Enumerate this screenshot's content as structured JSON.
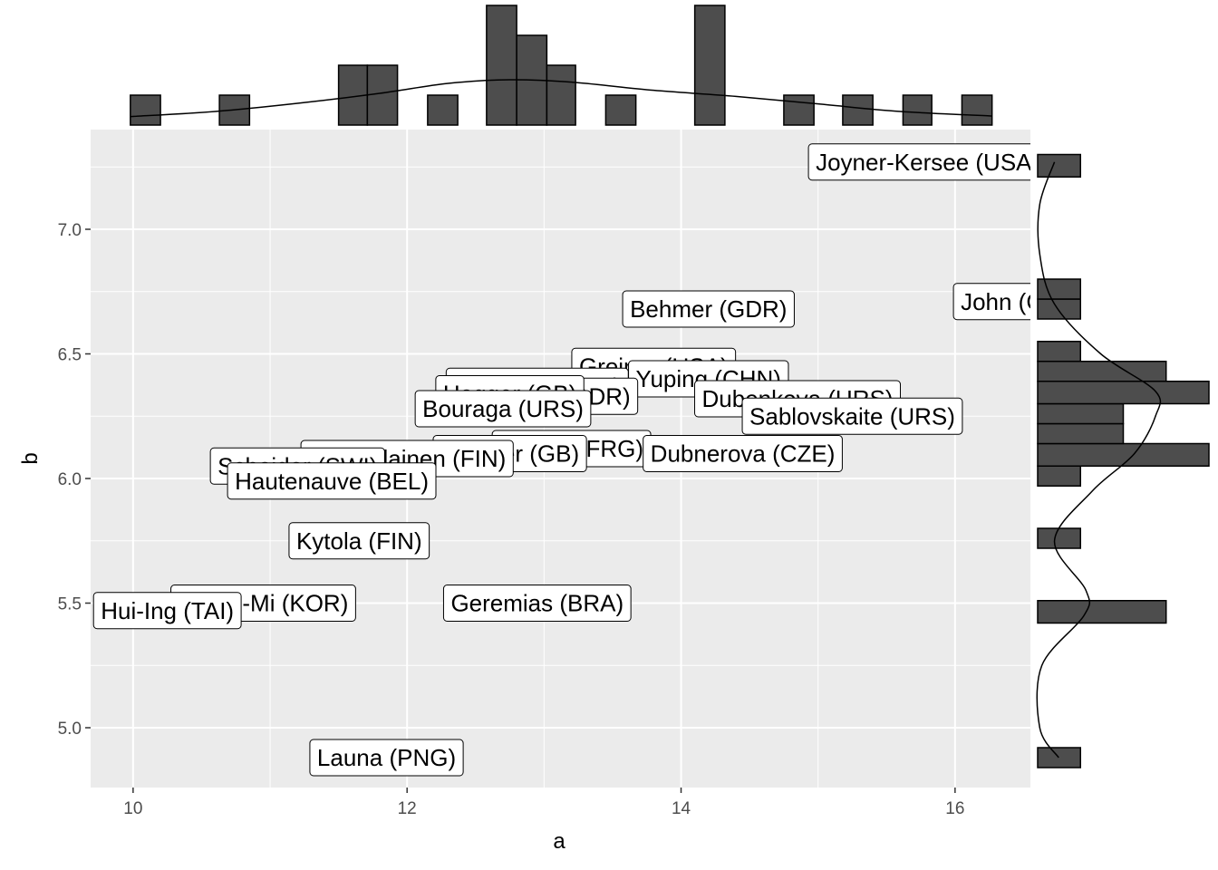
{
  "chart_data": {
    "type": "scatter",
    "title": "",
    "xlabel": "a",
    "ylabel": "b",
    "xlim": [
      9.69,
      16.55
    ],
    "ylim": [
      4.76,
      7.4
    ],
    "x_ticks": [
      10,
      12,
      14,
      16
    ],
    "x_tick_labels": [
      "10",
      "12",
      "14",
      "16"
    ],
    "y_ticks": [
      5.0,
      5.5,
      6.0,
      6.5,
      7.0
    ],
    "y_tick_labels": [
      "5.0",
      "5.5",
      "6.0",
      "6.5",
      "7.0"
    ],
    "grid": true,
    "panel_background": "#ebebeb",
    "bar_color": "#4d4d4d",
    "points": [
      {
        "label": "Joyner-Kersee (USA)",
        "x": 15.8,
        "y": 7.27
      },
      {
        "label": "John (GDR)",
        "x": 16.5,
        "y": 6.71
      },
      {
        "label": "Behmer (GDR)",
        "x": 14.2,
        "y": 6.68
      },
      {
        "label": "Greiner (USA)",
        "x": 13.8,
        "y": 6.45
      },
      {
        "label": "Yuping (CHN)",
        "x": 14.2,
        "y": 6.4
      },
      {
        "label": "Dimitrova (BUL)",
        "x": 12.95,
        "y": 6.37
      },
      {
        "label": "Schulz (GDR)",
        "x": 13.1,
        "y": 6.33
      },
      {
        "label": "Hagger (GB)",
        "x": 12.75,
        "y": 6.34
      },
      {
        "label": "Bouraga (URS)",
        "x": 12.7,
        "y": 6.28
      },
      {
        "label": "Dubenkova (URS)",
        "x": 14.85,
        "y": 6.32
      },
      {
        "label": "Sablovskaite (URS)",
        "x": 15.25,
        "y": 6.25
      },
      {
        "label": "Kunzel (FRG)",
        "x": 13.2,
        "y": 6.12
      },
      {
        "label": "Dubnerova (CZE)",
        "x": 14.45,
        "y": 6.1
      },
      {
        "label": "Mulliner (GB)",
        "x": 12.75,
        "y": 6.1
      },
      {
        "label": "Ruotsalainen (FIN)",
        "x": 12.0,
        "y": 6.08
      },
      {
        "label": "Scheider (SWI)",
        "x": 11.2,
        "y": 6.05
      },
      {
        "label": "Hautenauve (BEL)",
        "x": 11.45,
        "y": 5.99
      },
      {
        "label": "Kytola (FIN)",
        "x": 11.65,
        "y": 5.75
      },
      {
        "label": "Jeong-Mi (KOR)",
        "x": 10.95,
        "y": 5.5
      },
      {
        "label": "Geremias (BRA)",
        "x": 12.95,
        "y": 5.5
      },
      {
        "label": "Hui-Ing (TAI)",
        "x": 10.25,
        "y": 5.47
      },
      {
        "label": "Launa (PNG)",
        "x": 11.85,
        "y": 4.88
      }
    ],
    "x_histogram": {
      "bins": [
        {
          "from": 9.98,
          "to": 10.2,
          "count": 1
        },
        {
          "from": 10.63,
          "to": 10.85,
          "count": 1
        },
        {
          "from": 11.5,
          "to": 11.71,
          "count": 2
        },
        {
          "from": 11.71,
          "to": 11.93,
          "count": 2
        },
        {
          "from": 12.15,
          "to": 12.37,
          "count": 1
        },
        {
          "from": 12.58,
          "to": 12.8,
          "count": 4
        },
        {
          "from": 12.8,
          "to": 13.02,
          "count": 3
        },
        {
          "from": 13.02,
          "to": 13.23,
          "count": 2
        },
        {
          "from": 13.45,
          "to": 13.67,
          "count": 1
        },
        {
          "from": 14.1,
          "to": 14.32,
          "count": 4
        },
        {
          "from": 14.75,
          "to": 14.97,
          "count": 1
        },
        {
          "from": 15.18,
          "to": 15.4,
          "count": 1
        },
        {
          "from": 15.62,
          "to": 15.83,
          "count": 1
        },
        {
          "from": 16.05,
          "to": 16.27,
          "count": 1
        }
      ]
    },
    "y_histogram": {
      "bins": [
        {
          "from": 4.84,
          "to": 4.92,
          "count": 1
        },
        {
          "from": 5.42,
          "to": 5.51,
          "count": 3
        },
        {
          "from": 5.72,
          "to": 5.8,
          "count": 1
        },
        {
          "from": 5.97,
          "to": 6.05,
          "count": 1
        },
        {
          "from": 6.05,
          "to": 6.14,
          "count": 4
        },
        {
          "from": 6.14,
          "to": 6.22,
          "count": 2
        },
        {
          "from": 6.22,
          "to": 6.3,
          "count": 2
        },
        {
          "from": 6.3,
          "to": 6.39,
          "count": 4
        },
        {
          "from": 6.39,
          "to": 6.47,
          "count": 3
        },
        {
          "from": 6.47,
          "to": 6.55,
          "count": 1
        },
        {
          "from": 6.64,
          "to": 6.72,
          "count": 1
        },
        {
          "from": 6.72,
          "to": 6.8,
          "count": 1
        },
        {
          "from": 7.21,
          "to": 7.3,
          "count": 1
        }
      ]
    },
    "x_density": [
      [
        9.98,
        0.28
      ],
      [
        10.6,
        0.45
      ],
      [
        11.2,
        0.72
      ],
      [
        11.8,
        1.05
      ],
      [
        12.3,
        1.38
      ],
      [
        12.75,
        1.5
      ],
      [
        13.2,
        1.42
      ],
      [
        13.8,
        1.15
      ],
      [
        14.4,
        0.95
      ],
      [
        15.0,
        0.7
      ],
      [
        15.6,
        0.45
      ],
      [
        16.27,
        0.3
      ]
    ],
    "y_density": [
      [
        4.88,
        0.5
      ],
      [
        5.0,
        0.05
      ],
      [
        5.25,
        0.1
      ],
      [
        5.45,
        1.1
      ],
      [
        5.55,
        1.15
      ],
      [
        5.75,
        0.4
      ],
      [
        5.95,
        1.3
      ],
      [
        6.1,
        2.3
      ],
      [
        6.25,
        2.8
      ],
      [
        6.35,
        2.8
      ],
      [
        6.5,
        1.5
      ],
      [
        6.7,
        0.4
      ],
      [
        6.9,
        0.05
      ],
      [
        7.1,
        0.05
      ],
      [
        7.27,
        0.4
      ]
    ]
  }
}
